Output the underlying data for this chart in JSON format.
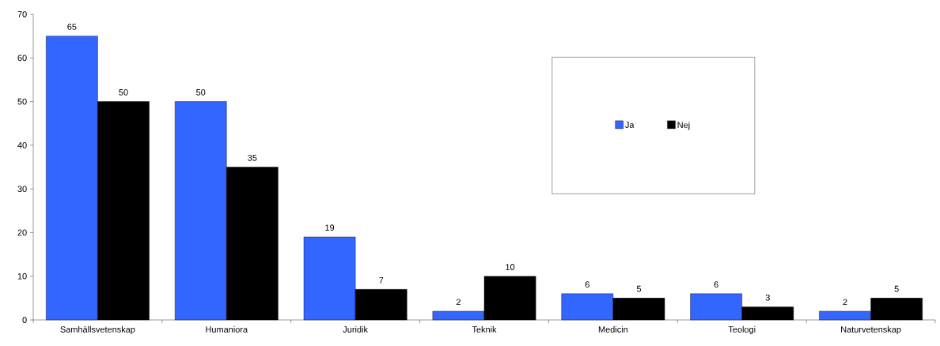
{
  "chart_data": {
    "type": "bar",
    "categories": [
      "Samhällsvetenskap",
      "Humaniora",
      "Juridik",
      "Teknik",
      "Medicin",
      "Teologi",
      "Naturvetenskap"
    ],
    "series": [
      {
        "name": "Ja",
        "color": "#3366ff",
        "values": [
          65,
          50,
          19,
          2,
          6,
          6,
          2
        ]
      },
      {
        "name": "Nej",
        "color": "#000000",
        "values": [
          50,
          35,
          7,
          10,
          5,
          3,
          5
        ]
      }
    ],
    "ylim": [
      0,
      70
    ],
    "yticks": [
      0,
      10,
      20,
      30,
      40,
      50,
      60,
      70
    ],
    "data_labels": true,
    "legend": "top right",
    "grid": false
  }
}
